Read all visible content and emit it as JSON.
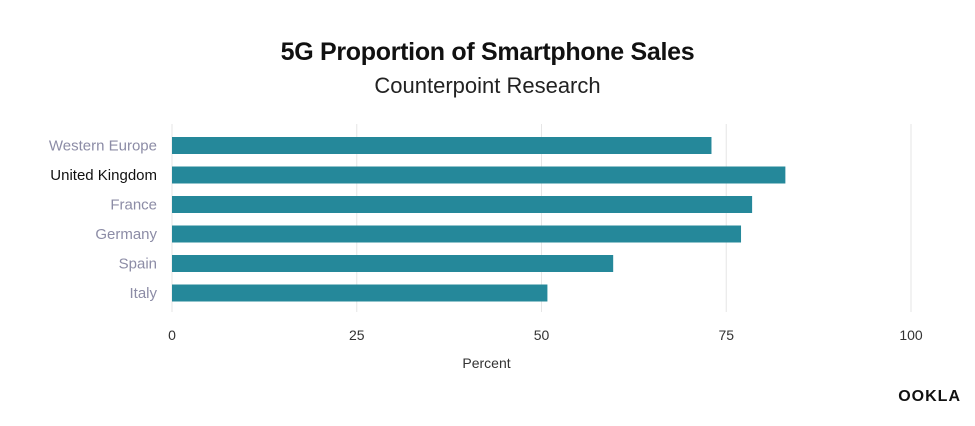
{
  "chart_data": {
    "type": "bar",
    "orientation": "horizontal",
    "title": "5G Proportion of Smartphone Sales",
    "subtitle": "Counterpoint Research",
    "xlabel": "Percent",
    "ylabel": "",
    "categories": [
      "Western Europe",
      "United Kingdom",
      "France",
      "Germany",
      "Spain",
      "Italy"
    ],
    "values": [
      73,
      83,
      78.5,
      77,
      59.7,
      50.8
    ],
    "highlighted_category": "United Kingdom",
    "xlim": [
      0,
      100
    ],
    "xticks": [
      0,
      25,
      50,
      75,
      100
    ],
    "grid": "vertical",
    "legend": "none",
    "colors": {
      "bar": "#25889a",
      "grid": "#e6e6e6",
      "category_label": "#8c8ca6",
      "highlight_label": "#111111",
      "tick_label": "#333333"
    }
  },
  "brand": {
    "logo_text": "OOKLA"
  }
}
